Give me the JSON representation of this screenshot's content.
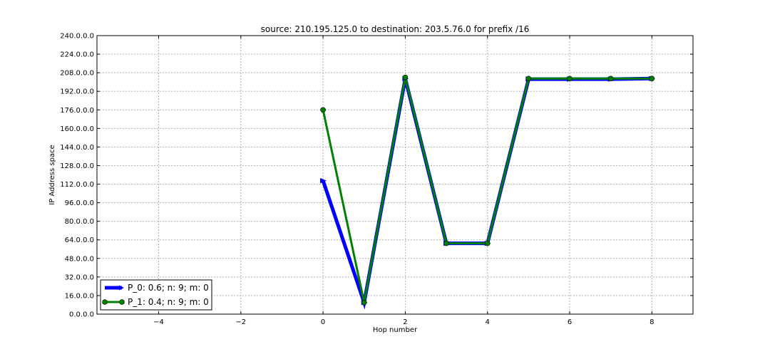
{
  "chart_data": {
    "type": "line",
    "title": "source: 210.195.125.0 to destination: 203.5.76.0 for prefix /16",
    "xlabel": "Hop number",
    "ylabel": "IP Address space",
    "xlim": [
      -5.5,
      9
    ],
    "ylim": [
      0,
      240
    ],
    "xticks": [
      -4,
      -2,
      0,
      2,
      4,
      6,
      8
    ],
    "yticks": [
      0,
      16,
      32,
      48,
      64,
      80,
      96,
      112,
      128,
      144,
      160,
      176,
      192,
      208,
      224,
      240
    ],
    "ytick_labels": [
      "0.0.0.0",
      "16.0.0.0",
      "32.0.0.0",
      "48.0.0.0",
      "64.0.0.0",
      "80.0.0.0",
      "96.0.0.0",
      "112.0.0.0",
      "128.0.0.0",
      "144.0.0.0",
      "160.0.0.0",
      "176.0.0.0",
      "192.0.0.0",
      "208.0.0.0",
      "224.0.0.0",
      "240.0.0.0"
    ],
    "grid": true,
    "legend_position": "lower-left",
    "series": [
      {
        "name": "P_0: 0.6; n: 9; m: 0",
        "color": "#0000ff",
        "marker": "arrow",
        "x": [
          0,
          1,
          2,
          3,
          4,
          5,
          6,
          7,
          8
        ],
        "y": [
          115,
          10,
          203,
          61,
          61,
          202.5,
          202.5,
          202.5,
          203
        ]
      },
      {
        "name": "P_1: 0.4; n: 9; m: 0",
        "color": "#008000",
        "marker": "circle",
        "x": [
          0,
          1,
          2,
          3,
          4,
          5,
          6,
          7,
          8
        ],
        "y": [
          176,
          10,
          204,
          61,
          61,
          203,
          203,
          203,
          203
        ]
      }
    ]
  }
}
